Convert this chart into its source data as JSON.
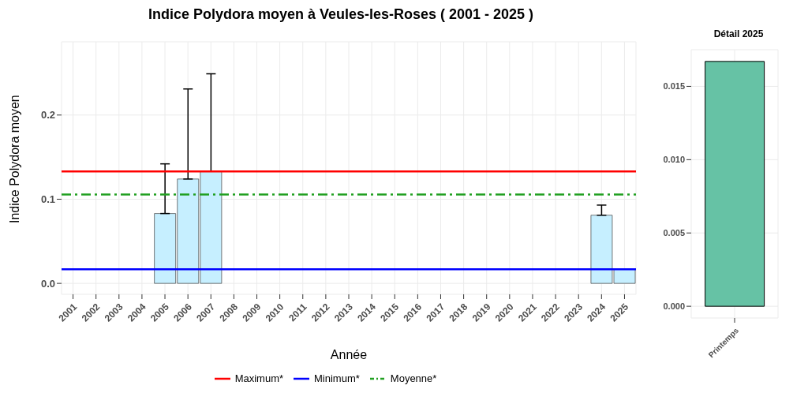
{
  "chart_data": [
    {
      "type": "bar",
      "title": "Indice Polydora moyen à Veules-les-Roses ( 2001 - 2025 )",
      "xlabel": "Année",
      "ylabel": "Indice Polydora moyen",
      "categories": [
        "2001",
        "2002",
        "2003",
        "2004",
        "2005",
        "2006",
        "2007",
        "2008",
        "2009",
        "2010",
        "2011",
        "2012",
        "2013",
        "2014",
        "2015",
        "2016",
        "2017",
        "2018",
        "2019",
        "2020",
        "2021",
        "2022",
        "2023",
        "2024",
        "2025"
      ],
      "values": [
        null,
        null,
        null,
        null,
        0.083,
        0.124,
        0.133,
        null,
        null,
        null,
        null,
        null,
        null,
        null,
        null,
        null,
        null,
        null,
        null,
        null,
        null,
        null,
        null,
        0.081,
        0.017
      ],
      "errors": [
        null,
        null,
        null,
        null,
        [
          0.083,
          0.142
        ],
        [
          0.124,
          0.231
        ],
        [
          0.133,
          0.249
        ],
        null,
        null,
        null,
        null,
        null,
        null,
        null,
        null,
        null,
        null,
        null,
        null,
        null,
        null,
        null,
        null,
        [
          0.081,
          0.093
        ],
        null
      ],
      "color": "#c6efff",
      "ylim": [
        -0.013,
        0.287
      ],
      "yticks": [
        {
          "value": 0,
          "label": "0.0"
        },
        0.1,
        0.2
      ],
      "ref_lines": [
        {
          "axis": "y",
          "value": 0.133,
          "label": "Maximum*",
          "color": "#ff0000",
          "line_style": "solid"
        },
        {
          "axis": "y",
          "value": 0.0168,
          "label": "Minimum*",
          "color": "#0000ff",
          "line_style": "solid"
        },
        {
          "axis": "y",
          "value": 0.1057,
          "label": "Moyenne*",
          "color": "#22a022",
          "line_style": "dashed"
        }
      ],
      "grid": true,
      "legend": "bottom"
    },
    {
      "type": "bar",
      "title": "Détail 2025",
      "categories": [
        "Printemps"
      ],
      "values": [
        0.0167
      ],
      "color": "#66c2a5",
      "ylim": [
        -0.0008,
        0.0175
      ],
      "yticks": [
        {
          "value": 0,
          "label": "0.000"
        },
        {
          "value": 0.005,
          "label": "0.005"
        },
        {
          "value": 0.01,
          "label": "0.010"
        },
        {
          "value": 0.015,
          "label": "0.015"
        }
      ],
      "grid": true
    }
  ]
}
